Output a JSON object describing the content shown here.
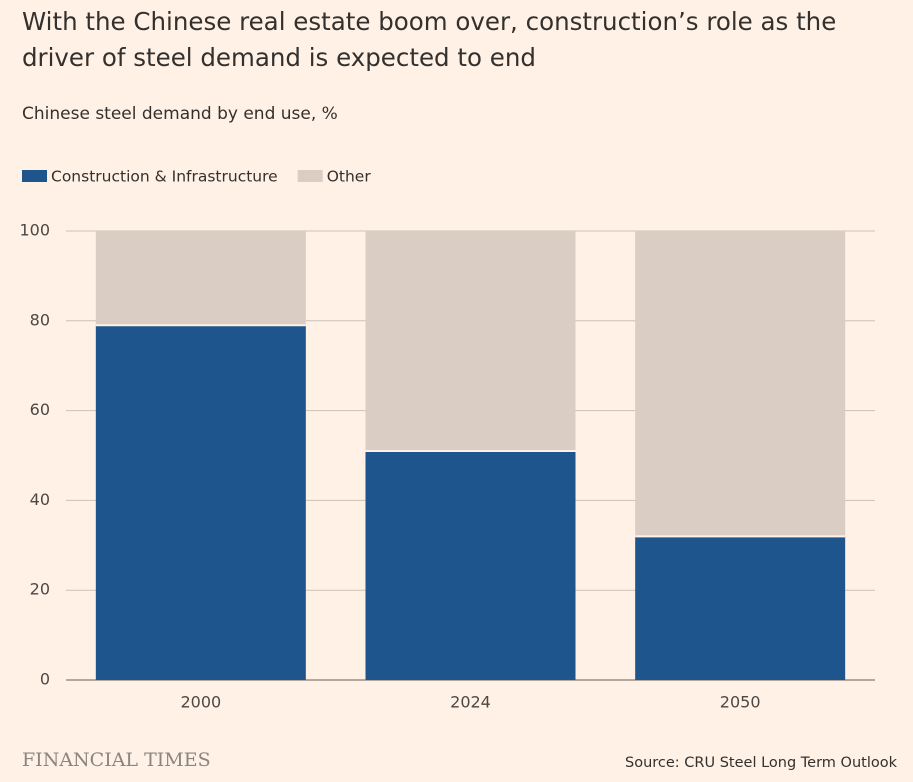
{
  "chart_data": {
    "type": "stacked_bar",
    "title": "With the Chinese real estate boom over, construction’s role as the driver of steel demand is expected to end",
    "subtitle": "Chinese steel demand by end use, %",
    "categories": [
      "2000",
      "2024",
      "2050"
    ],
    "series": [
      {
        "name": "Construction & Infrastructure",
        "color": "#1e558c",
        "values": [
          79,
          51,
          32
        ]
      },
      {
        "name": "Other",
        "color": "#dacdc4",
        "values": [
          21,
          49,
          68
        ]
      }
    ],
    "ylim": [
      0,
      100
    ],
    "yticks": [
      0,
      20,
      40,
      60,
      80,
      100
    ],
    "grid": true,
    "source": "Source: CRU Steel Long Term Outlook",
    "brand": "FINANCIAL TIMES"
  }
}
